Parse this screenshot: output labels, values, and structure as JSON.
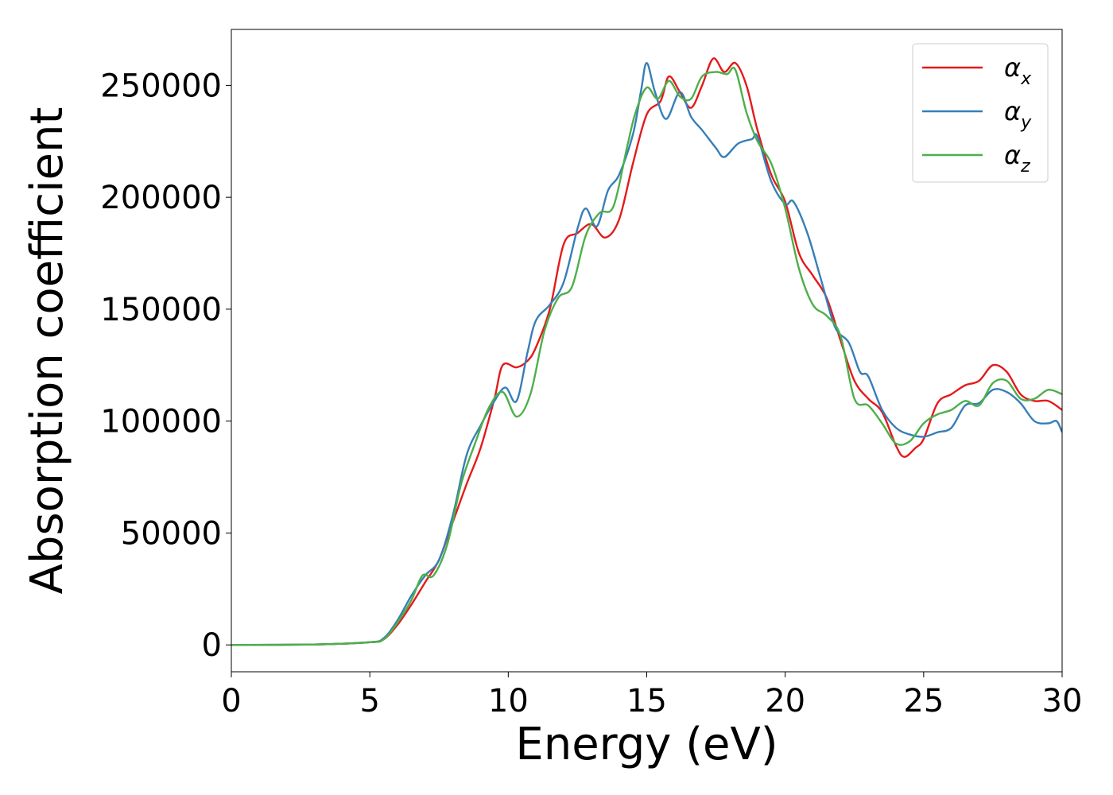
{
  "chart_data": {
    "type": "line",
    "title": "",
    "xlabel": "Energy (eV)",
    "ylabel": "Absorption coefficient",
    "xlim": [
      0,
      30
    ],
    "ylim": [
      -12000,
      275000
    ],
    "xticks": [
      0,
      5,
      10,
      15,
      20,
      25,
      30
    ],
    "yticks": [
      0,
      50000,
      100000,
      150000,
      200000,
      250000
    ],
    "grid": false,
    "legend_position": "top-right",
    "series": [
      {
        "name": "α",
        "subscript": "x",
        "color": "#e41a1c",
        "points": [
          [
            0,
            0
          ],
          [
            3,
            200
          ],
          [
            5,
            1200
          ],
          [
            5.5,
            2500
          ],
          [
            6,
            9000
          ],
          [
            6.5,
            18000
          ],
          [
            7,
            28000
          ],
          [
            7.5,
            38000
          ],
          [
            8,
            55000
          ],
          [
            8.5,
            72000
          ],
          [
            9,
            88000
          ],
          [
            9.5,
            110000
          ],
          [
            9.8,
            125000
          ],
          [
            10.3,
            124000
          ],
          [
            10.7,
            127000
          ],
          [
            11,
            133000
          ],
          [
            11.5,
            150000
          ],
          [
            12,
            179000
          ],
          [
            12.5,
            184000
          ],
          [
            13,
            188000
          ],
          [
            13.5,
            182000
          ],
          [
            14,
            190000
          ],
          [
            14.5,
            215000
          ],
          [
            15,
            237000
          ],
          [
            15.5,
            243000
          ],
          [
            15.8,
            254000
          ],
          [
            16.2,
            247000
          ],
          [
            16.6,
            240000
          ],
          [
            17,
            250000
          ],
          [
            17.4,
            262000
          ],
          [
            17.8,
            256000
          ],
          [
            18.2,
            260000
          ],
          [
            18.6,
            250000
          ],
          [
            19,
            230000
          ],
          [
            19.5,
            210000
          ],
          [
            20,
            198000
          ],
          [
            20.5,
            175000
          ],
          [
            21,
            165000
          ],
          [
            21.5,
            155000
          ],
          [
            22,
            136000
          ],
          [
            22.5,
            118000
          ],
          [
            23,
            110000
          ],
          [
            23.5,
            104000
          ],
          [
            24,
            89000
          ],
          [
            24.3,
            84000
          ],
          [
            24.7,
            88000
          ],
          [
            25,
            92000
          ],
          [
            25.5,
            108000
          ],
          [
            26,
            112000
          ],
          [
            26.5,
            116000
          ],
          [
            27,
            118000
          ],
          [
            27.5,
            125000
          ],
          [
            28,
            122000
          ],
          [
            28.5,
            112000
          ],
          [
            29,
            109000
          ],
          [
            29.5,
            109000
          ],
          [
            30,
            105000
          ]
        ]
      },
      {
        "name": "α",
        "subscript": "y",
        "color": "#377eb8",
        "points": [
          [
            0,
            0
          ],
          [
            3,
            200
          ],
          [
            5,
            1200
          ],
          [
            5.5,
            3000
          ],
          [
            6,
            11000
          ],
          [
            6.5,
            22000
          ],
          [
            7,
            31000
          ],
          [
            7.5,
            38000
          ],
          [
            8,
            58000
          ],
          [
            8.5,
            85000
          ],
          [
            9,
            98000
          ],
          [
            9.5,
            109000
          ],
          [
            9.9,
            115000
          ],
          [
            10.3,
            109000
          ],
          [
            10.7,
            131000
          ],
          [
            11,
            145000
          ],
          [
            11.5,
            152000
          ],
          [
            12,
            162000
          ],
          [
            12.5,
            186000
          ],
          [
            12.8,
            195000
          ],
          [
            13.2,
            187000
          ],
          [
            13.6,
            203000
          ],
          [
            14,
            210000
          ],
          [
            14.5,
            228000
          ],
          [
            14.8,
            248000
          ],
          [
            15,
            260000
          ],
          [
            15.3,
            247000
          ],
          [
            15.7,
            235000
          ],
          [
            16.2,
            247000
          ],
          [
            16.6,
            236000
          ],
          [
            17,
            230000
          ],
          [
            17.5,
            222000
          ],
          [
            17.8,
            218000
          ],
          [
            18.3,
            224000
          ],
          [
            18.8,
            226000
          ],
          [
            19,
            227000
          ],
          [
            19.5,
            207000
          ],
          [
            20,
            197000
          ],
          [
            20.3,
            198000
          ],
          [
            20.8,
            184000
          ],
          [
            21.3,
            163000
          ],
          [
            21.8,
            142000
          ],
          [
            22.3,
            135000
          ],
          [
            22.7,
            122000
          ],
          [
            23,
            120000
          ],
          [
            23.5,
            105000
          ],
          [
            24,
            97000
          ],
          [
            24.5,
            94000
          ],
          [
            25,
            93000
          ],
          [
            25.5,
            95000
          ],
          [
            26,
            97000
          ],
          [
            26.5,
            107000
          ],
          [
            27,
            108000
          ],
          [
            27.5,
            114000
          ],
          [
            28,
            113000
          ],
          [
            28.5,
            108000
          ],
          [
            29,
            100000
          ],
          [
            29.5,
            99000
          ],
          [
            29.8,
            100000
          ],
          [
            30,
            95000
          ]
        ]
      },
      {
        "name": "α",
        "subscript": "z",
        "color": "#4daf4a",
        "points": [
          [
            0,
            0
          ],
          [
            3,
            200
          ],
          [
            5,
            1200
          ],
          [
            5.5,
            2500
          ],
          [
            6,
            10000
          ],
          [
            6.5,
            20000
          ],
          [
            6.9,
            31000
          ],
          [
            7.3,
            31000
          ],
          [
            7.8,
            45000
          ],
          [
            8.3,
            72000
          ],
          [
            8.8,
            90000
          ],
          [
            9.3,
            106000
          ],
          [
            9.8,
            113000
          ],
          [
            10.3,
            102000
          ],
          [
            10.8,
            112000
          ],
          [
            11.3,
            140000
          ],
          [
            11.8,
            155000
          ],
          [
            12.3,
            160000
          ],
          [
            12.8,
            183000
          ],
          [
            13.3,
            193000
          ],
          [
            13.8,
            196000
          ],
          [
            14.3,
            223000
          ],
          [
            14.6,
            238000
          ],
          [
            15,
            249000
          ],
          [
            15.4,
            244000
          ],
          [
            15.8,
            252000
          ],
          [
            16.2,
            245000
          ],
          [
            16.6,
            244000
          ],
          [
            17,
            254000
          ],
          [
            17.5,
            256000
          ],
          [
            17.9,
            255000
          ],
          [
            18.2,
            257000
          ],
          [
            18.6,
            238000
          ],
          [
            19,
            225000
          ],
          [
            19.5,
            215000
          ],
          [
            20,
            195000
          ],
          [
            20.5,
            168000
          ],
          [
            21,
            152000
          ],
          [
            21.5,
            147000
          ],
          [
            22,
            138000
          ],
          [
            22.5,
            110000
          ],
          [
            23,
            107000
          ],
          [
            23.5,
            99000
          ],
          [
            24,
            90000
          ],
          [
            24.5,
            91000
          ],
          [
            25,
            99000
          ],
          [
            25.5,
            103000
          ],
          [
            26,
            105000
          ],
          [
            26.5,
            109000
          ],
          [
            27,
            107000
          ],
          [
            27.5,
            117000
          ],
          [
            28,
            118000
          ],
          [
            28.5,
            110000
          ],
          [
            29,
            110000
          ],
          [
            29.5,
            114000
          ],
          [
            30,
            112000
          ]
        ]
      }
    ]
  }
}
